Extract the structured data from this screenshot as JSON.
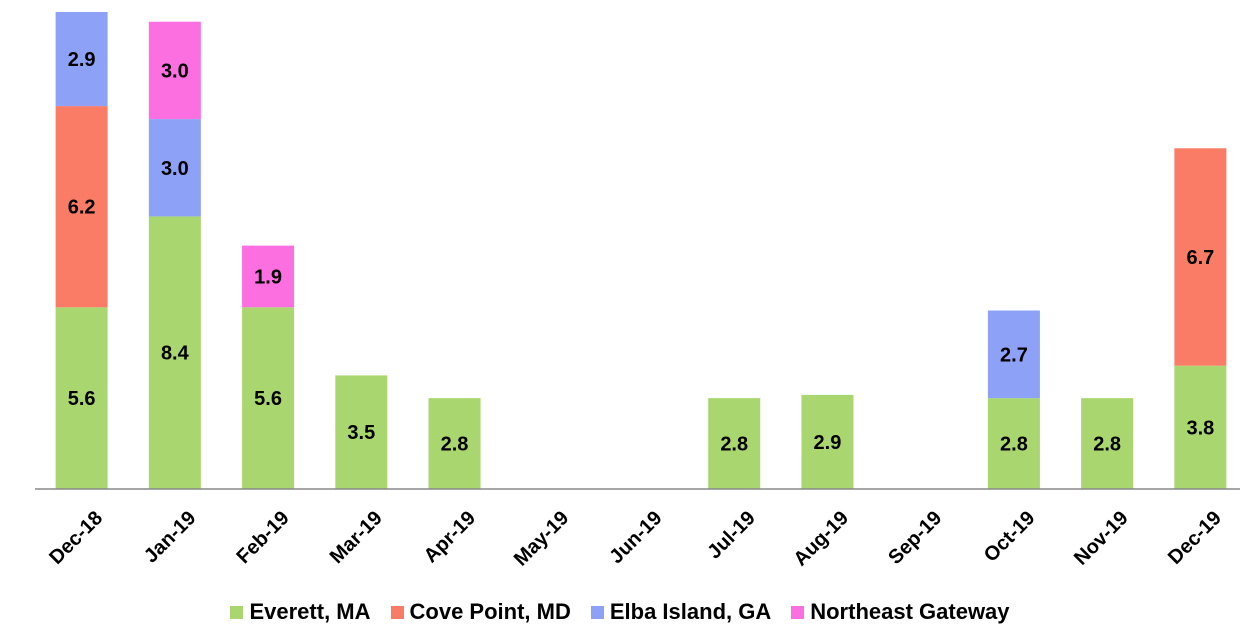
{
  "chart_data": {
    "type": "bar",
    "stacked": true,
    "categories": [
      "Dec-18",
      "Jan-19",
      "Feb-19",
      "Mar-19",
      "Apr-19",
      "May-19",
      "Jun-19",
      "Jul-19",
      "Aug-19",
      "Sep-19",
      "Oct-19",
      "Nov-19",
      "Dec-19"
    ],
    "series": [
      {
        "name": "Everett, MA",
        "color": "#a9d66f",
        "values": [
          5.6,
          8.4,
          5.6,
          3.5,
          2.8,
          0,
          0,
          2.8,
          2.9,
          0,
          2.8,
          2.8,
          3.8
        ]
      },
      {
        "name": "Cove Point, MD",
        "color": "#fa7b66",
        "values": [
          6.2,
          0,
          0,
          0,
          0,
          0,
          0,
          0,
          0,
          0,
          0,
          0,
          6.7
        ]
      },
      {
        "name": "Elba Island, GA",
        "color": "#8da2f6",
        "values": [
          2.9,
          3.0,
          0,
          0,
          0,
          0,
          0,
          0,
          0,
          0,
          2.7,
          0,
          0
        ]
      },
      {
        "name": "Northeast Gateway",
        "color": "#fb6fe0",
        "values": [
          0,
          3.0,
          1.9,
          0,
          0,
          0,
          0,
          0,
          0,
          0,
          0,
          0,
          0
        ]
      }
    ],
    "ylim": [
      0,
      15
    ],
    "grid": false,
    "legend_position": "bottom",
    "data_labels": true
  }
}
